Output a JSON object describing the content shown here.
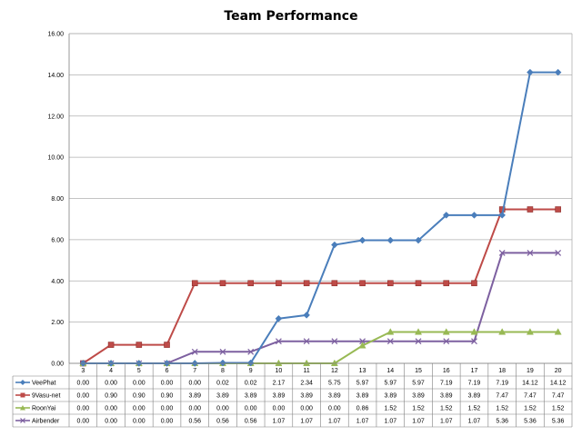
{
  "chart_data": {
    "type": "line",
    "title": "Team Performance",
    "xlabel": "",
    "ylabel": "",
    "ylim": [
      0,
      16
    ],
    "yticks": [
      "0.00",
      "2.00",
      "4.00",
      "6.00",
      "8.00",
      "10.00",
      "12.00",
      "14.00",
      "16.00"
    ],
    "categories": [
      "3",
      "4",
      "5",
      "6",
      "7",
      "8",
      "9",
      "10",
      "11",
      "12",
      "13",
      "14",
      "15",
      "16",
      "17",
      "18",
      "19",
      "20"
    ],
    "grid": "horizontal",
    "legend": "data-table-below",
    "series": [
      {
        "name": "VeePhat",
        "color": "#4a7ebb",
        "marker": "diamond",
        "values": [
          0.0,
          0.0,
          0.0,
          0.0,
          0.0,
          0.02,
          0.02,
          2.17,
          2.34,
          5.75,
          5.97,
          5.97,
          5.97,
          7.19,
          7.19,
          7.19,
          14.12,
          14.12
        ],
        "labels": [
          "0.00",
          "0.00",
          "0.00",
          "0.00",
          "0.00",
          "0.02",
          "0.02",
          "2.17",
          "2.34",
          "5.75",
          "5.97",
          "5.97",
          "5.97",
          "7.19",
          "7.19",
          "7.19",
          "14.12",
          "14.12"
        ]
      },
      {
        "name": "9Vasu-net",
        "color": "#be4b48",
        "marker": "square",
        "values": [
          0.0,
          0.9,
          0.9,
          0.9,
          3.89,
          3.89,
          3.89,
          3.89,
          3.89,
          3.89,
          3.89,
          3.89,
          3.89,
          3.89,
          3.89,
          7.47,
          7.47,
          7.47
        ],
        "labels": [
          "0.00",
          "0.90",
          "0.90",
          "0.90",
          "3.89",
          "3.89",
          "3.89",
          "3.89",
          "3.89",
          "3.89",
          "3.89",
          "3.89",
          "3.89",
          "3.89",
          "3.89",
          "7.47",
          "7.47",
          "7.47"
        ]
      },
      {
        "name": "RoonYai",
        "color": "#98b954",
        "marker": "triangle",
        "values": [
          0.0,
          0.0,
          0.0,
          0.0,
          0.0,
          0.0,
          0.0,
          0.0,
          0.0,
          0.0,
          0.86,
          1.52,
          1.52,
          1.52,
          1.52,
          1.52,
          1.52,
          1.52
        ],
        "labels": [
          "0.00",
          "0.00",
          "0.00",
          "0.00",
          "0.00",
          "0.00",
          "0.00",
          "0.00",
          "0.00",
          "0.00",
          "0.86",
          "1.52",
          "1.52",
          "1.52",
          "1.52",
          "1.52",
          "1.52",
          "1.52"
        ]
      },
      {
        "name": "Airbender",
        "color": "#7d60a0",
        "marker": "x",
        "values": [
          0.0,
          0.0,
          0.0,
          0.0,
          0.56,
          0.56,
          0.56,
          1.07,
          1.07,
          1.07,
          1.07,
          1.07,
          1.07,
          1.07,
          1.07,
          5.36,
          5.36,
          5.36
        ],
        "labels": [
          "0.00",
          "0.00",
          "0.00",
          "0.00",
          "0.56",
          "0.56",
          "0.56",
          "1.07",
          "1.07",
          "1.07",
          "1.07",
          "1.07",
          "1.07",
          "1.07",
          "1.07",
          "5.36",
          "5.36",
          "5.36"
        ]
      }
    ]
  }
}
